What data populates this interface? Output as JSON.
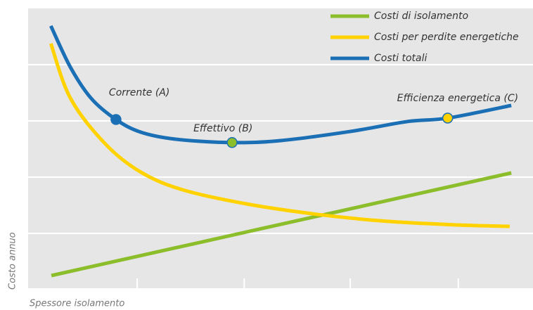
{
  "chart_data": {
    "type": "line",
    "xlabel": "Spessore isolamento",
    "ylabel": "Costo annuo",
    "xlim": [
      0,
      100
    ],
    "ylim": [
      0,
      100
    ],
    "xticks": [
      21.6,
      42.8,
      63.8,
      85.2
    ],
    "yticks": [
      20,
      40,
      60,
      80
    ],
    "grid": true,
    "legend": "upper right",
    "series": [
      {
        "name": "Costi di isolamento",
        "color": "#8cbd2b",
        "x": [
          4.6,
          50,
          95.7
        ],
        "values": [
          5,
          23.2,
          41.5
        ]
      },
      {
        "name": "Costi per perdite energetiche",
        "color": "#ffd200",
        "x": [
          4.5,
          8.4,
          15.3,
          22.3,
          30.6,
          43.2,
          57.1,
          71,
          85,
          95.4
        ],
        "values": [
          87.5,
          68,
          51.8,
          41.8,
          35.5,
          30.5,
          26.8,
          24.3,
          23,
          22.5
        ]
      },
      {
        "name": "Costi totali",
        "color": "#1a6fb5",
        "x": [
          4.5,
          8.4,
          12.5,
          17.4,
          22.3,
          29.2,
          40.4,
          50,
          64,
          75.2,
          83.1,
          95.7
        ],
        "values": [
          93.8,
          79,
          68,
          60.5,
          56,
          53.5,
          52.3,
          53,
          56.3,
          59.8,
          61,
          65.5
        ]
      }
    ],
    "annotations": [
      {
        "text": "Corrente (A)",
        "x": 17.4,
        "y": 60.5,
        "color": "#1a6fb5"
      },
      {
        "text": "Effettivo (B)",
        "x": 40.4,
        "y": 52.3,
        "color": "#8cbd2b"
      },
      {
        "text": "Efficienza energetica (C)",
        "x": 83.1,
        "y": 61,
        "color": "#ffd200"
      }
    ]
  }
}
